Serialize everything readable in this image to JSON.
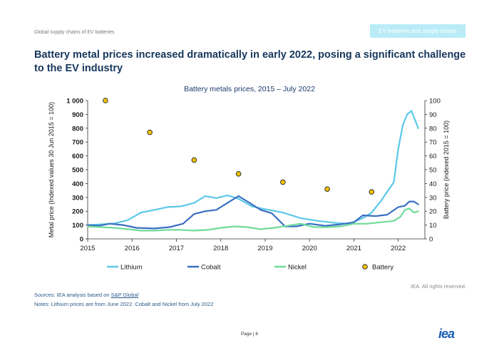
{
  "header": {
    "report_name": "Global supply chains of EV batteries",
    "section_badge": "EV batteries and supply chains"
  },
  "page_title": "Battery metal prices increased dramatically in early 2022, posing a significant challenge to the EV industry",
  "chart_data": {
    "type": "line",
    "title": "Battery metals prices, 2015 – July 2022",
    "ylabel": "Metal price (Indexed values 30 Jun 2015 = 100)",
    "y2label": "Battery price (indexed 2015 = 100)",
    "ylim": [
      0,
      1000
    ],
    "y2lim": [
      0,
      100
    ],
    "xlim": [
      2015,
      2022.6
    ],
    "xticks": [
      "2015",
      "2016",
      "2017",
      "2018",
      "2019",
      "2020",
      "2021",
      "2022"
    ],
    "yticks": [
      "0",
      "100",
      "200",
      "300",
      "400",
      "500",
      "600",
      "700",
      "800",
      "900",
      "1 000"
    ],
    "y2ticks": [
      "0",
      "10",
      "20",
      "30",
      "40",
      "50",
      "60",
      "70",
      "80",
      "90",
      "100"
    ],
    "grid": false,
    "legend_position": "bottom",
    "series": [
      {
        "name": "Lithium",
        "color": "#5bc8e8",
        "x": [
          2015.0,
          2015.3,
          2015.6,
          2015.9,
          2016.2,
          2016.5,
          2016.8,
          2017.1,
          2017.4,
          2017.65,
          2017.9,
          2018.15,
          2018.4,
          2018.7,
          2019.0,
          2019.4,
          2019.8,
          2020.2,
          2020.6,
          2020.9,
          2021.2,
          2021.4,
          2021.6,
          2021.9,
          2022.0,
          2022.1,
          2022.2,
          2022.3,
          2022.45
        ],
        "y": [
          100,
          105,
          112,
          135,
          190,
          210,
          230,
          235,
          260,
          310,
          295,
          315,
          290,
          235,
          215,
          190,
          150,
          130,
          115,
          110,
          150,
          190,
          270,
          410,
          650,
          820,
          900,
          925,
          800
        ]
      },
      {
        "name": "Cobalt",
        "color": "#3a6fc2",
        "x": [
          2015.0,
          2015.25,
          2015.5,
          2015.8,
          2016.1,
          2016.5,
          2016.85,
          2017.15,
          2017.4,
          2017.65,
          2017.9,
          2018.15,
          2018.4,
          2018.65,
          2018.9,
          2019.15,
          2019.45,
          2019.7,
          2020.0,
          2020.35,
          2020.7,
          2021.0,
          2021.2,
          2021.5,
          2021.75,
          2022.0,
          2022.15,
          2022.25,
          2022.35,
          2022.45
        ],
        "y": [
          100,
          95,
          110,
          100,
          80,
          75,
          85,
          110,
          180,
          200,
          210,
          260,
          310,
          260,
          210,
          185,
          90,
          90,
          110,
          95,
          105,
          120,
          170,
          165,
          175,
          230,
          240,
          270,
          270,
          250
        ]
      },
      {
        "name": "Nickel",
        "color": "#6fdc9a",
        "x": [
          2015.0,
          2015.3,
          2015.6,
          2015.9,
          2016.2,
          2016.5,
          2016.8,
          2017.1,
          2017.4,
          2017.7,
          2018.0,
          2018.3,
          2018.6,
          2018.9,
          2019.2,
          2019.5,
          2019.8,
          2020.1,
          2020.4,
          2020.7,
          2021.0,
          2021.3,
          2021.6,
          2021.9,
          2022.05,
          2022.15,
          2022.25,
          2022.35,
          2022.45
        ],
        "y": [
          90,
          85,
          80,
          70,
          60,
          60,
          65,
          65,
          60,
          65,
          80,
          90,
          85,
          70,
          80,
          95,
          110,
          85,
          85,
          90,
          110,
          110,
          120,
          130,
          160,
          210,
          220,
          190,
          200
        ]
      }
    ],
    "battery": {
      "name": "Battery",
      "color": "#f2c400",
      "edge": "#333333",
      "x": [
        2015.4,
        2016.4,
        2017.4,
        2018.4,
        2019.4,
        2020.4,
        2021.4
      ],
      "y2": [
        100,
        77,
        57,
        47,
        41,
        36,
        34
      ]
    }
  },
  "footer": {
    "sources_prefix": "Sources: IEA analysis based on ",
    "sources_link": "S&P Global",
    "notes": "Notes: Lithium prices are from June 2022. Cobalt and Nickel from July 2022",
    "rights": "IEA. All rights reserved.",
    "page": "Page | 6",
    "logo": "iea"
  }
}
